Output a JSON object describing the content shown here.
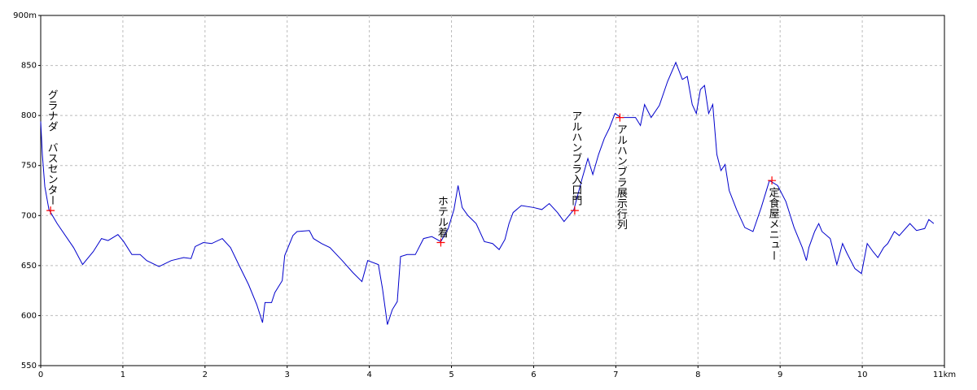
{
  "chart_data": {
    "type": "line",
    "x": [
      0,
      0.02,
      0.05,
      0.1,
      0.2,
      0.4,
      0.51,
      0.64,
      0.74,
      0.82,
      0.94,
      1.01,
      1.11,
      1.21,
      1.29,
      1.44,
      1.59,
      1.74,
      1.83,
      1.88,
      1.98,
      2.08,
      2.21,
      2.31,
      2.41,
      2.53,
      2.63,
      2.7,
      2.73,
      2.81,
      2.85,
      2.94,
      2.97,
      3.07,
      3.12,
      3.27,
      3.32,
      3.42,
      3.52,
      3.67,
      3.8,
      3.91,
      3.98,
      4.11,
      4.16,
      4.22,
      4.28,
      4.34,
      4.38,
      4.46,
      4.56,
      4.66,
      4.76,
      4.87,
      4.96,
      5.03,
      5.08,
      5.13,
      5.2,
      5.3,
      5.4,
      5.5,
      5.58,
      5.65,
      5.7,
      5.75,
      5.85,
      6.0,
      6.1,
      6.19,
      6.29,
      6.37,
      6.49,
      6.59,
      6.66,
      6.72,
      6.79,
      6.86,
      6.92,
      6.99,
      7.06,
      7.24,
      7.3,
      7.35,
      7.43,
      7.53,
      7.63,
      7.73,
      7.81,
      7.87,
      7.93,
      7.98,
      8.03,
      8.08,
      8.13,
      8.18,
      8.23,
      8.28,
      8.33,
      8.38,
      8.47,
      8.57,
      8.67,
      8.77,
      8.87,
      8.97,
      9.07,
      9.17,
      9.27,
      9.32,
      9.35,
      9.42,
      9.47,
      9.51,
      9.61,
      9.69,
      9.76,
      9.81,
      9.91,
      9.99,
      10.06,
      10.13,
      10.19,
      10.26,
      10.31,
      10.39,
      10.45,
      10.58,
      10.66,
      10.76,
      10.81,
      10.87
    ],
    "series": [
      {
        "color": "#0000cc",
        "values": [
          794,
          761,
          729,
          706,
          692,
          668,
          651,
          664,
          677,
          675,
          681,
          674,
          661,
          661,
          655,
          649,
          655,
          658,
          657,
          669,
          673,
          672,
          677,
          668,
          651,
          631,
          611,
          593,
          613,
          613,
          623,
          635,
          660,
          680,
          684,
          685,
          677,
          672,
          668,
          655,
          643,
          634,
          655,
          651,
          627,
          591,
          606,
          614,
          659,
          661,
          661,
          677,
          679,
          674,
          687,
          706,
          730,
          708,
          700,
          692,
          674,
          672,
          666,
          676,
          692,
          703,
          710,
          708,
          706,
          712,
          703,
          694,
          706,
          737,
          757,
          741,
          761,
          777,
          787,
          802,
          798,
          798,
          790,
          811,
          798,
          810,
          834,
          853,
          836,
          839,
          811,
          802,
          826,
          830,
          802,
          811,
          761,
          745,
          751,
          725,
          706,
          688,
          684,
          708,
          735,
          730,
          714,
          688,
          668,
          655,
          668,
          684,
          692,
          684,
          677,
          651,
          672,
          663,
          647,
          642,
          672,
          664,
          658,
          668,
          672,
          684,
          680,
          692,
          685,
          687,
          696,
          692
        ]
      }
    ],
    "annotations": [
      {
        "text": "グラナダ　バスセンター",
        "x": 0.12,
        "y": 705,
        "placement": "above"
      },
      {
        "text": "ホテル着",
        "x": 4.87,
        "y": 673,
        "placement": "above"
      },
      {
        "text": "アルハンブラ入口門",
        "x": 6.5,
        "y": 705,
        "placement": "above"
      },
      {
        "text": "アルハンブラ展示行列",
        "x": 7.05,
        "y": 798,
        "placement": "below"
      },
      {
        "text": "定食屋メニュー",
        "x": 8.9,
        "y": 735,
        "placement": "below"
      }
    ],
    "annotation_color": "#008000",
    "marker_color": "#ff0000",
    "xlim": [
      0,
      11
    ],
    "xticks": [
      0,
      1,
      2,
      3,
      4,
      5,
      6,
      7,
      8,
      9,
      10,
      {
        "value": 11,
        "label": "11km"
      }
    ],
    "ylim": [
      550,
      900
    ],
    "yticks": [
      550,
      600,
      650,
      700,
      750,
      800,
      850,
      {
        "value": 900,
        "label": "900m"
      }
    ],
    "grid": true
  }
}
